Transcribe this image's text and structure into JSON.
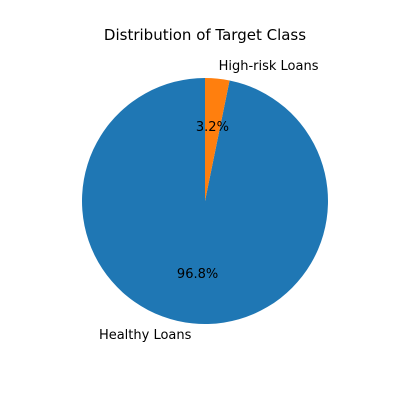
{
  "chart_data": {
    "type": "pie",
    "title": "Distribution of Target Class",
    "labels": [
      "Healthy Loans",
      "High-risk Loans"
    ],
    "values": [
      96.8,
      3.2
    ],
    "percent_labels": [
      "96.8%",
      "3.2%"
    ],
    "colors": [
      "#1f77b4",
      "#ff7f0e"
    ],
    "start_angle": "top",
    "direction": "counterclockwise",
    "legend": "none",
    "grid": false
  }
}
